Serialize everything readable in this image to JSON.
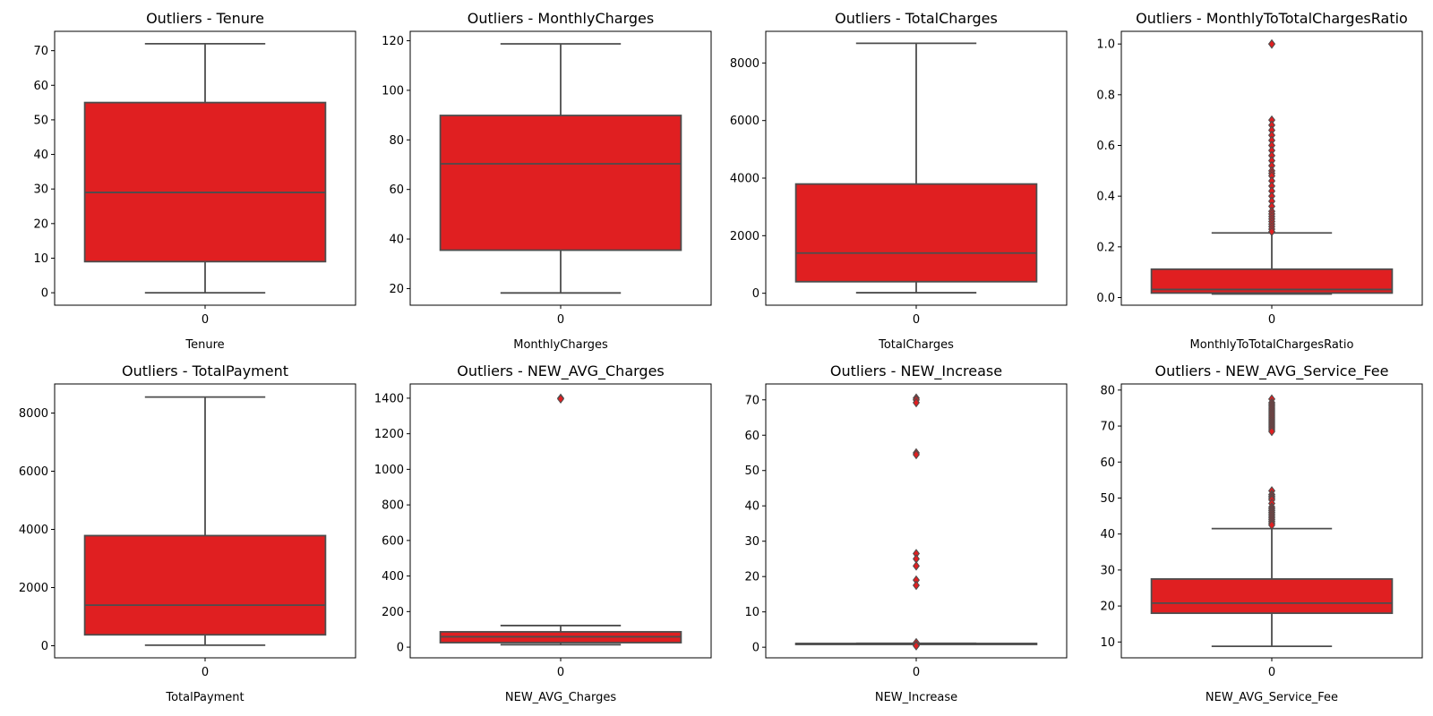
{
  "colors": {
    "box_fill": "#e01f21",
    "box_line": "#4d4d4d",
    "flier_fill": "#e01f21",
    "frame": "#000000",
    "background": "#ffffff"
  },
  "chart_data": [
    {
      "type": "box",
      "title": "Outliers - Tenure",
      "xlabel": "Tenure",
      "category": "0",
      "ylim": [
        -3.6,
        75.6
      ],
      "yticks": [
        0,
        10,
        20,
        30,
        40,
        50,
        60,
        70
      ],
      "tick_labels": [
        "0",
        "10",
        "20",
        "30",
        "40",
        "50",
        "60",
        "70"
      ],
      "whisker_low": 0,
      "q1": 9,
      "median": 29,
      "q3": 55,
      "whisker_high": 72,
      "outliers": []
    },
    {
      "type": "box",
      "title": "Outliers - MonthlyCharges",
      "xlabel": "MonthlyCharges",
      "category": "0",
      "ylim": [
        13.3,
        123.8
      ],
      "yticks": [
        20,
        40,
        60,
        80,
        100,
        120
      ],
      "tick_labels": [
        "20",
        "40",
        "60",
        "80",
        "100",
        "120"
      ],
      "whisker_low": 18.25,
      "q1": 35.5,
      "median": 70.35,
      "q3": 89.85,
      "whisker_high": 118.75,
      "outliers": []
    },
    {
      "type": "box",
      "title": "Outliers - TotalCharges",
      "xlabel": "TotalCharges",
      "category": "0",
      "ylim": [
        -415,
        9100
      ],
      "yticks": [
        0,
        2000,
        4000,
        6000,
        8000
      ],
      "tick_labels": [
        "0",
        "2000",
        "4000",
        "6000",
        "8000"
      ],
      "whisker_low": 18.8,
      "q1": 401,
      "median": 1397,
      "q3": 3795,
      "whisker_high": 8685,
      "outliers": []
    },
    {
      "type": "box",
      "title": "Outliers - MonthlyToTotalChargesRatio",
      "xlabel": "MonthlyToTotalChargesRatio",
      "category": "0",
      "ylim": [
        -0.03,
        1.05
      ],
      "yticks": [
        0,
        0.2,
        0.4,
        0.6,
        0.8,
        1.0
      ],
      "tick_labels": [
        "0.0",
        "0.2",
        "0.4",
        "0.6",
        "0.8",
        "1.0"
      ],
      "whisker_low": 0.014,
      "q1": 0.018,
      "median": 0.032,
      "q3": 0.112,
      "whisker_high": 0.255,
      "outliers": [
        1.0,
        1.0,
        0.7,
        0.68,
        0.66,
        0.64,
        0.62,
        0.6,
        0.58,
        0.56,
        0.54,
        0.52,
        0.5,
        0.49,
        0.48,
        0.46,
        0.44,
        0.42,
        0.4,
        0.38,
        0.36,
        0.34,
        0.33,
        0.32,
        0.31,
        0.3,
        0.29,
        0.28,
        0.27,
        0.26
      ]
    },
    {
      "type": "box",
      "title": "Outliers - TotalPayment",
      "xlabel": "TotalPayment",
      "category": "0",
      "ylim": [
        -415,
        9000
      ],
      "yticks": [
        0,
        2000,
        4000,
        6000,
        8000
      ],
      "tick_labels": [
        "0",
        "2000",
        "4000",
        "6000",
        "8000"
      ],
      "whisker_low": 18.8,
      "q1": 377,
      "median": 1396,
      "q3": 3786,
      "whisker_high": 8550,
      "outliers": []
    },
    {
      "type": "box",
      "title": "Outliers - NEW_AVG_Charges",
      "xlabel": "NEW_AVG_Charges",
      "category": "0",
      "ylim": [
        -60,
        1480
      ],
      "yticks": [
        0,
        200,
        400,
        600,
        800,
        1000,
        1200,
        1400
      ],
      "tick_labels": [
        "0",
        "200",
        "400",
        "600",
        "800",
        "1000",
        "1200",
        "1400"
      ],
      "whisker_low": 13.8,
      "q1": 25.4,
      "median": 58.5,
      "q3": 86.2,
      "whisker_high": 121.5,
      "outliers": [
        1400,
        1396
      ]
    },
    {
      "type": "box",
      "title": "Outliers - NEW_Increase",
      "xlabel": "NEW_Increase",
      "category": "0",
      "ylim": [
        -3,
        74.5
      ],
      "yticks": [
        0,
        10,
        20,
        30,
        40,
        50,
        60,
        70
      ],
      "tick_labels": [
        "0",
        "10",
        "20",
        "30",
        "40",
        "50",
        "60",
        "70"
      ],
      "whisker_low": 0.9,
      "q1": 0.95,
      "median": 1.0,
      "q3": 1.05,
      "whisker_high": 1.1,
      "outliers": [
        70.5,
        70,
        69.2,
        55,
        54.5,
        26.5,
        25,
        23,
        19,
        17.5,
        1.3,
        0.6,
        0.4
      ]
    },
    {
      "type": "box",
      "title": "Outliers - NEW_AVG_Service_Fee",
      "xlabel": "NEW_AVG_Service_Fee",
      "category": "0",
      "ylim": [
        5.6,
        81.7
      ],
      "yticks": [
        10,
        20,
        30,
        40,
        50,
        60,
        70,
        80
      ],
      "tick_labels": [
        "10",
        "20",
        "30",
        "40",
        "50",
        "60",
        "70",
        "80"
      ],
      "whisker_low": 8.8,
      "q1": 18.0,
      "median": 20.8,
      "q3": 27.5,
      "whisker_high": 41.5,
      "outliers": [
        77.5,
        76.5,
        76,
        75.5,
        75,
        74.5,
        74,
        73.5,
        73,
        72.5,
        72,
        71.5,
        71,
        70.5,
        70,
        69.5,
        69,
        68.5,
        52,
        51,
        50.5,
        50,
        49.5,
        48.5,
        47.5,
        47,
        46.5,
        46,
        45.5,
        45,
        44.5,
        44,
        43.5,
        43,
        42.5
      ]
    }
  ]
}
